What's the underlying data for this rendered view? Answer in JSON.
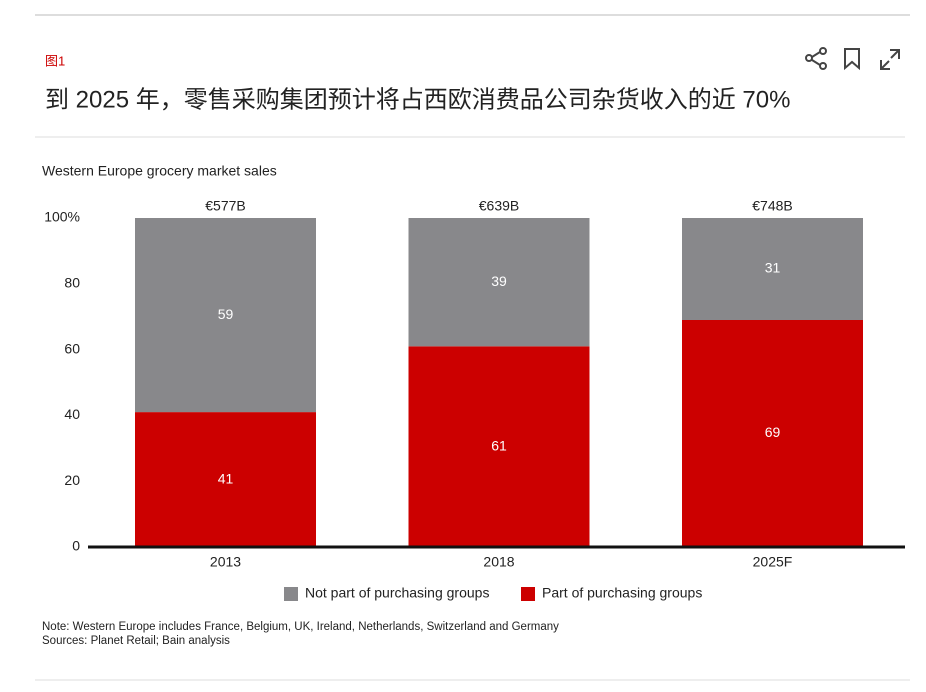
{
  "figure_label": "图1",
  "headline": "到 2025 年，零售采购集团预计将占西欧消费品公司杂货收入的近 70%",
  "chart_data": {
    "type": "stacked_bar",
    "title": "Western Europe grocery market sales",
    "categories": [
      "2013",
      "2018",
      "2025F"
    ],
    "annotations": [
      "€577B",
      "€639B",
      "€748B"
    ],
    "series": [
      {
        "name": "Not part of purchasing groups",
        "color": "#88888b",
        "values": [
          59,
          39,
          31
        ]
      },
      {
        "name": "Part of purchasing groups",
        "color": "#cc0000",
        "values": [
          41,
          61,
          69
        ]
      }
    ],
    "ylim": [
      0,
      100
    ],
    "yticks": [
      0,
      20,
      40,
      60,
      80,
      {
        "value": 100,
        "label": "100%"
      }
    ],
    "legend": "bottom",
    "notes": [
      "Note: Western Europe includes France, Belgium, UK, Ireland, Netherlands, Switzerland and Germany",
      "Sources: Planet Retail; Bain analysis"
    ]
  }
}
